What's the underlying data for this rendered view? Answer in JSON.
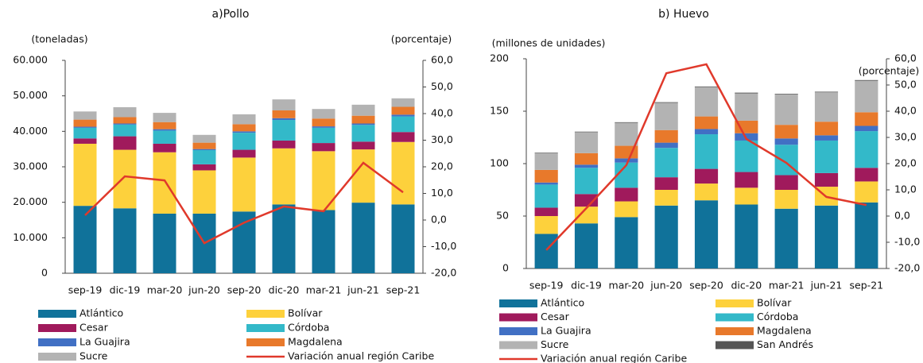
{
  "chart_data": [
    {
      "type": "bar",
      "stacked": true,
      "title": "a)Pollo",
      "ylabel": "(toneladas)",
      "y2label": "(porcentaje)",
      "categories": [
        "sep-19",
        "dic-19",
        "mar-20",
        "jun-20",
        "sep-20",
        "dic-20",
        "mar-21",
        "jun-21",
        "sep-21"
      ],
      "ylim": [
        0,
        60000
      ],
      "yticks": [
        0,
        {
          "value": 10000,
          "label": "10.000"
        },
        {
          "value": 20000,
          "label": "20.000"
        },
        {
          "value": 30000,
          "label": "30.000"
        },
        {
          "value": 40000,
          "label": "40.000"
        },
        {
          "value": 50000,
          "label": "50.000"
        },
        {
          "value": 60000,
          "label": "60.000"
        }
      ],
      "y2lim": [
        -20,
        60
      ],
      "y2ticks": [
        {
          "value": -20,
          "label": "-20,0"
        },
        {
          "value": -10,
          "label": "-10,0"
        },
        {
          "value": 0,
          "label": "0,0"
        },
        {
          "value": 10,
          "label": "10,0"
        },
        {
          "value": 20,
          "label": "20,0"
        },
        {
          "value": 30,
          "label": "30,0"
        },
        {
          "value": 40,
          "label": "40,0"
        },
        {
          "value": 50,
          "label": "50,0"
        },
        {
          "value": 60,
          "label": "60,0"
        }
      ],
      "series": [
        {
          "name": "Atlántico",
          "color": "#10729a",
          "values": [
            19000,
            18300,
            16800,
            16800,
            17400,
            19400,
            17800,
            19900,
            19400
          ]
        },
        {
          "name": "Bolívar",
          "color": "#fdd13c",
          "values": [
            17500,
            16500,
            17300,
            12200,
            15200,
            15800,
            16600,
            15000,
            17600
          ]
        },
        {
          "name": "Cesar",
          "color": "#a01a5c",
          "values": [
            1500,
            3800,
            2400,
            1700,
            2200,
            2200,
            2300,
            2200,
            2800
          ]
        },
        {
          "name": "Córdoba",
          "color": "#33b9c9",
          "values": [
            3000,
            3300,
            3700,
            4000,
            4800,
            5800,
            4300,
            4700,
            4400
          ]
        },
        {
          "name": "La Guajira",
          "color": "#4170c4",
          "values": [
            300,
            300,
            400,
            300,
            400,
            500,
            400,
            400,
            500
          ]
        },
        {
          "name": "Magdalena",
          "color": "#e8792b",
          "values": [
            2000,
            1800,
            2000,
            1800,
            2000,
            2200,
            2200,
            2200,
            2200
          ]
        },
        {
          "name": "Sucre",
          "color": "#b3b3b3",
          "values": [
            2300,
            2800,
            2600,
            2200,
            2800,
            3100,
            2700,
            3100,
            2400
          ]
        },
        {
          "name": "Variación anual región Caribe",
          "color": "#e0392b",
          "axis": "y2",
          "values": [
            1.8,
            16.4,
            14.9,
            -8.7,
            -1.0,
            5.1,
            3.3,
            21.5,
            10.4
          ]
        }
      ]
    },
    {
      "type": "bar",
      "stacked": true,
      "title": "b) Huevo",
      "ylabel": "(millones de unidades)",
      "y2label": "(porcentaje)",
      "categories": [
        "sep-19",
        "dic-19",
        "mar-20",
        "jun-20",
        "sep-20",
        "dic-20",
        "mar-21",
        "jun-21",
        "sep-21"
      ],
      "ylim": [
        0,
        200
      ],
      "yticks": [
        0,
        50,
        100,
        150,
        200
      ],
      "y2lim": [
        -20,
        60
      ],
      "y2ticks": [
        {
          "value": -20,
          "label": "-20,0"
        },
        {
          "value": -10,
          "label": "-10,0"
        },
        {
          "value": 0,
          "label": "0,0"
        },
        {
          "value": 10,
          "label": "10,0"
        },
        {
          "value": 20,
          "label": "20,0"
        },
        {
          "value": 30,
          "label": "30,0"
        },
        {
          "value": 40,
          "label": "40,0"
        },
        {
          "value": 50,
          "label": "50,0"
        },
        {
          "value": 60,
          "label": "60,0"
        }
      ],
      "series": [
        {
          "name": "Atlántico",
          "color": "#10729a",
          "values": [
            33,
            43,
            49,
            60,
            65,
            61,
            57,
            60,
            63
          ]
        },
        {
          "name": "Bolívar",
          "color": "#fdd13c",
          "values": [
            17,
            16,
            15,
            15,
            16,
            16,
            18,
            18,
            20
          ]
        },
        {
          "name": "Cesar",
          "color": "#a01a5c",
          "values": [
            8,
            12,
            13,
            12,
            14,
            15,
            14,
            13,
            13
          ]
        },
        {
          "name": "Córdoba",
          "color": "#33b9c9",
          "values": [
            22,
            25,
            24,
            28,
            33,
            30,
            29,
            31,
            35
          ]
        },
        {
          "name": "La Guajira",
          "color": "#4170c4",
          "values": [
            2,
            3,
            4,
            5,
            5,
            7,
            6,
            5,
            5
          ]
        },
        {
          "name": "Magdalena",
          "color": "#e8792b",
          "values": [
            12,
            11,
            12,
            12,
            12,
            12,
            13,
            13,
            13
          ]
        },
        {
          "name": "Sucre",
          "color": "#b3b3b3",
          "values": [
            16,
            20,
            22,
            26,
            28,
            26,
            29,
            28,
            30
          ]
        },
        {
          "name": "San Andrés",
          "color": "#555555",
          "values": [
            0.5,
            0.5,
            0.5,
            0.6,
            0.6,
            0.7,
            0.6,
            0.6,
            0.7
          ]
        },
        {
          "name": "Variación anual región Caribe",
          "color": "#e0392b",
          "axis": "y2",
          "values": [
            -13,
            3,
            19.4,
            54.5,
            57.9,
            29.4,
            20.3,
            7.3,
            4.2
          ]
        }
      ]
    }
  ]
}
